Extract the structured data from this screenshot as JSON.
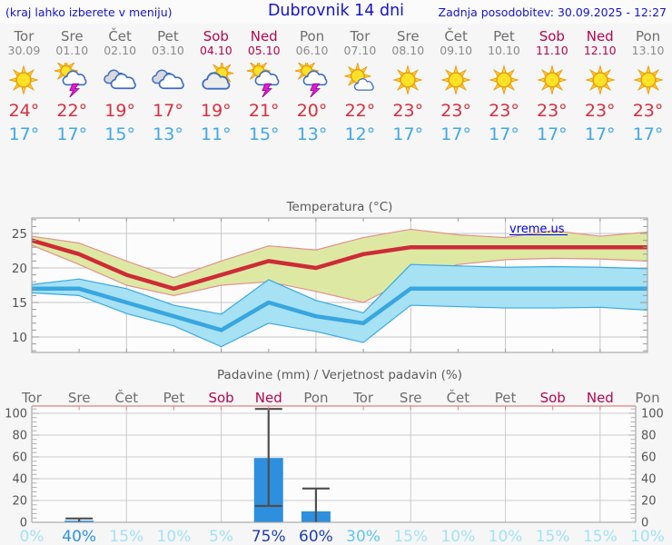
{
  "header": {
    "note": "(kraj lahko izberete v meniju)",
    "title": "Dubrovnik 14 dni",
    "updated": "Zadnja posodobitev: 30.09.2025 - 12:27"
  },
  "watermark": "vreme.us",
  "colors": {
    "header_blue": "#1414d2",
    "weekday_gray": "#6e6e6e",
    "date_gray": "#8a8a8a",
    "weekend_red": "#b5054f",
    "high_red": "#da2e3e",
    "low_blue": "#3fa8e8",
    "watermark_blue": "#0000e8",
    "chart_red_line": "#ce2b38",
    "chart_blue_line": "#38a6e0",
    "band_yellow": "#dde9a2",
    "band_blue": "#a6e1f4",
    "bar_blue": "#2e8fdf",
    "pct_levels": {
      "low": "#a3e2f8",
      "mid": "#5cc6f2",
      "high": "#2d93e3",
      "vhigh": "#1d3fae"
    }
  },
  "days": [
    {
      "name": "Tor",
      "date": "30.09",
      "weekend": false,
      "icon": "sunny",
      "high": "24°",
      "low": "17°",
      "pct": "0%",
      "pct_level": "low"
    },
    {
      "name": "Sre",
      "date": "01.10",
      "weekend": false,
      "icon": "thunder-sun",
      "high": "22°",
      "low": "17°",
      "pct": "40%",
      "pct_level": "high"
    },
    {
      "name": "Čet",
      "date": "02.10",
      "weekend": false,
      "icon": "cloudy",
      "high": "19°",
      "low": "15°",
      "pct": "15%",
      "pct_level": "low"
    },
    {
      "name": "Pet",
      "date": "03.10",
      "weekend": false,
      "icon": "cloudy",
      "high": "17°",
      "low": "13°",
      "pct": "10%",
      "pct_level": "low"
    },
    {
      "name": "Sob",
      "date": "04.10",
      "weekend": true,
      "icon": "partly-cloudy",
      "high": "19°",
      "low": "11°",
      "pct": "5%",
      "pct_level": "low"
    },
    {
      "name": "Ned",
      "date": "05.10",
      "weekend": true,
      "icon": "thunder-sun",
      "high": "21°",
      "low": "15°",
      "pct": "75%",
      "pct_level": "vhigh"
    },
    {
      "name": "Pon",
      "date": "06.10",
      "weekend": false,
      "icon": "thunder-sun",
      "high": "20°",
      "low": "13°",
      "pct": "60%",
      "pct_level": "vhigh"
    },
    {
      "name": "Tor",
      "date": "07.10",
      "weekend": false,
      "icon": "mostly-sunny",
      "high": "22°",
      "low": "12°",
      "pct": "30%",
      "pct_level": "mid"
    },
    {
      "name": "Sre",
      "date": "08.10",
      "weekend": false,
      "icon": "sunny",
      "high": "23°",
      "low": "17°",
      "pct": "15%",
      "pct_level": "low"
    },
    {
      "name": "Čet",
      "date": "09.10",
      "weekend": false,
      "icon": "sunny",
      "high": "23°",
      "low": "17°",
      "pct": "10%",
      "pct_level": "low"
    },
    {
      "name": "Pet",
      "date": "10.10",
      "weekend": false,
      "icon": "sunny",
      "high": "23°",
      "low": "17°",
      "pct": "10%",
      "pct_level": "low"
    },
    {
      "name": "Sob",
      "date": "11.10",
      "weekend": true,
      "icon": "sunny",
      "high": "23°",
      "low": "17°",
      "pct": "15%",
      "pct_level": "low"
    },
    {
      "name": "Ned",
      "date": "12.10",
      "weekend": true,
      "icon": "sunny",
      "high": "23°",
      "low": "17°",
      "pct": "15%",
      "pct_level": "low"
    },
    {
      "name": "Pon",
      "date": "13.10",
      "weekend": false,
      "icon": "sunny",
      "high": "23°",
      "low": "17°",
      "pct": "10%",
      "pct_level": "low"
    }
  ],
  "chart_data": [
    {
      "type": "line",
      "title": "Temperatura (°C)",
      "x_days": [
        "Tor",
        "Sre",
        "Čet",
        "Pet",
        "Sob",
        "Ned",
        "Pon",
        "Tor",
        "Sre",
        "Čet",
        "Pet",
        "Sob",
        "Ned",
        "Pon"
      ],
      "ylim": [
        7.8,
        27.2
      ],
      "yticks": [
        25,
        20,
        15,
        10
      ],
      "grid": true,
      "legend": "none",
      "watermark": "vreme.us",
      "series": [
        {
          "name": "max_temp",
          "color": "#ce2b38",
          "values": [
            24,
            22,
            19,
            17,
            19,
            21,
            20,
            22,
            23,
            23,
            23,
            23,
            23,
            23
          ]
        },
        {
          "name": "max_band_upper",
          "values": [
            24.6,
            23.6,
            21.0,
            18.6,
            21.0,
            23.2,
            22.6,
            24.4,
            25.6,
            24.8,
            24.4,
            25.4,
            24.6,
            25.2
          ]
        },
        {
          "name": "max_band_lower",
          "values": [
            23.3,
            20.5,
            17.5,
            16.0,
            17.5,
            18.0,
            16.6,
            15.0,
            18.5,
            20.5,
            21.2,
            21.4,
            21.3,
            21.0
          ]
        },
        {
          "name": "min_temp",
          "color": "#38a6e0",
          "values": [
            17,
            17,
            15,
            13,
            11,
            15,
            13,
            12,
            17,
            17,
            17,
            17,
            17,
            17
          ]
        },
        {
          "name": "min_band_upper",
          "values": [
            17.6,
            18.4,
            17.0,
            14.6,
            13.3,
            18.3,
            15.3,
            13.5,
            20.5,
            20.3,
            20.1,
            20.2,
            20.1,
            19.9
          ]
        },
        {
          "name": "min_band_lower",
          "values": [
            16.4,
            16.0,
            13.4,
            11.6,
            8.6,
            12.0,
            10.8,
            9.2,
            14.6,
            14.4,
            14.2,
            14.2,
            14.3,
            13.9
          ]
        }
      ]
    },
    {
      "type": "bar",
      "title": "Padavine (mm) / Verjetnost padavin (%)",
      "categories": [
        "Tor",
        "Sre",
        "Čet",
        "Pet",
        "Sob",
        "Ned",
        "Pon",
        "Tor",
        "Sre",
        "Čet",
        "Pet",
        "Sob",
        "Ned",
        "Pon"
      ],
      "values_mm": [
        0,
        1.5,
        0,
        0,
        0,
        59,
        10,
        0,
        0,
        0,
        0,
        0,
        0,
        0
      ],
      "whisker_low": [
        null,
        0,
        null,
        null,
        null,
        15,
        0,
        null,
        null,
        null,
        null,
        null,
        null,
        null
      ],
      "whisker_high": [
        null,
        3.5,
        null,
        null,
        null,
        104,
        31,
        null,
        null,
        null,
        null,
        null,
        null,
        null
      ],
      "whisker_low_cap": [
        false,
        false,
        false,
        false,
        false,
        true,
        false,
        false,
        false,
        false,
        false,
        false,
        false,
        false
      ],
      "probability_pct": [
        0,
        40,
        15,
        10,
        5,
        75,
        60,
        30,
        15,
        10,
        10,
        15,
        15,
        10
      ],
      "ylim": [
        0,
        106.5
      ],
      "yticks": [
        100,
        80,
        60,
        40,
        20,
        0
      ],
      "grid": true
    }
  ]
}
